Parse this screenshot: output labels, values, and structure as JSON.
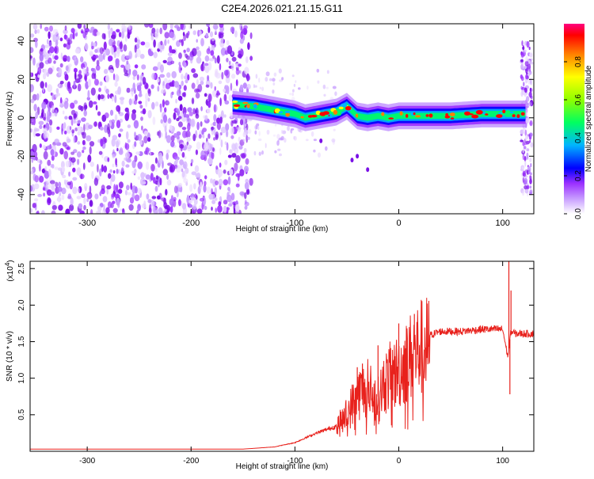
{
  "page_title": "C2E4.2026.021.21.15.G11",
  "chart_data": [
    {
      "type": "heatmap",
      "title": "C2E4.2026.021.21.15.G11",
      "xlabel": "Height of straight line (km)",
      "ylabel": "Frequency (Hz)",
      "xlim": [
        -355,
        130
      ],
      "ylim": [
        -50,
        49
      ],
      "x_ticks": [
        -300,
        -200,
        -100,
        0,
        100
      ],
      "x_tick_labels": [
        "-300",
        "-200",
        "-100",
        "0",
        "100"
      ],
      "y_ticks": [
        -40,
        -20,
        0,
        20,
        40
      ],
      "y_tick_labels": [
        "-40",
        "-20",
        "0",
        "20",
        "40"
      ],
      "colorbar": {
        "label": "Normalized spectral amplitude",
        "range": [
          0,
          1
        ],
        "ticks": [
          0.0,
          0.2,
          0.4,
          0.6,
          0.8
        ],
        "tick_labels": [
          "0.0",
          "0.2",
          "0.4",
          "0.6",
          "0.8"
        ],
        "colors": [
          "#ffffff",
          "#9b30ff",
          "#0000ff",
          "#00c8ff",
          "#00ff00",
          "#ffff00",
          "#ff8000",
          "#ff0000",
          "#ff0080"
        ]
      },
      "ridge": {
        "x": [
          -160,
          -140,
          -120,
          -100,
          -90,
          -80,
          -60,
          -50,
          -40,
          -30,
          -20,
          -10,
          0,
          20,
          50,
          80,
          100,
          120
        ],
        "y": [
          7,
          6,
          4,
          2,
          0,
          1,
          3,
          6,
          1,
          0,
          1,
          0,
          1,
          1,
          1,
          2,
          2,
          2
        ]
      },
      "noise_region": {
        "x": [
          -355,
          -150
        ],
        "y": [
          -50,
          49
        ]
      },
      "grid": false
    },
    {
      "type": "line",
      "title": "",
      "xlabel": "Height of straight line (km)",
      "ylabel": "SNR (10 * v/v)",
      "y_multiplier_label": "(x10",
      "y_multiplier_exp": "4",
      "y_multiplier_close": ")",
      "xlim": [
        -355,
        130
      ],
      "ylim": [
        0,
        2.6
      ],
      "x_ticks": [
        -300,
        -200,
        -100,
        0,
        100
      ],
      "x_tick_labels": [
        "-300",
        "-200",
        "-100",
        "0",
        "100"
      ],
      "y_ticks": [
        0.5,
        1.0,
        1.5,
        2.0,
        2.5
      ],
      "y_tick_labels": [
        "0.5",
        "1.0",
        "1.5",
        "2.0",
        "2.5"
      ],
      "series_color": "#e8211c",
      "envelope": {
        "x": [
          -355,
          -150,
          -120,
          -100,
          -80,
          -60,
          -50,
          -40,
          -30,
          -20,
          -15,
          -10,
          0,
          10,
          20,
          30,
          40,
          60,
          80,
          100,
          105,
          108,
          112,
          130
        ],
        "y": [
          0.03,
          0.03,
          0.06,
          0.12,
          0.25,
          0.35,
          0.55,
          0.85,
          0.95,
          0.75,
          1.0,
          1.1,
          1.2,
          1.4,
          1.55,
          1.6,
          1.65,
          1.65,
          1.68,
          1.68,
          1.3,
          1.65,
          1.62,
          1.62
        ]
      },
      "spikes": {
        "x": [
          -40,
          -35,
          -20,
          0,
          15,
          106,
          107,
          108
        ],
        "y": [
          1.15,
          1.2,
          1.45,
          1.75,
          1.88,
          2.6,
          0.78,
          2.2
        ]
      },
      "grid": false
    }
  ]
}
